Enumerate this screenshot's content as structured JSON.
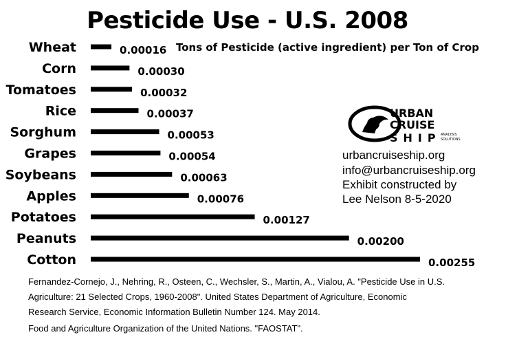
{
  "chart_data": {
    "type": "bar",
    "orientation": "horizontal",
    "title": "Pesticide Use - U.S. 2008",
    "unit_note": "Tons of Pesticide (active ingredient) per Ton of Crop",
    "categories": [
      "Wheat",
      "Corn",
      "Tomatoes",
      "Rice",
      "Sorghum",
      "Grapes",
      "Soybeans",
      "Apples",
      "Potatoes",
      "Peanuts",
      "Cotton"
    ],
    "values": [
      0.00016,
      0.0003,
      0.00032,
      0.00037,
      0.00053,
      0.00054,
      0.00063,
      0.00076,
      0.00127,
      0.002,
      0.00255
    ],
    "value_labels": [
      "0.00016",
      "0.00030",
      "0.00032",
      "0.00037",
      "0.00053",
      "0.00054",
      "0.00063",
      "0.00076",
      "0.00127",
      "0.00200",
      "0.00255"
    ],
    "xlim": [
      0,
      0.00255
    ],
    "grid": false,
    "legend": "none",
    "bar_color": "#000000"
  },
  "logo": {
    "lines": [
      "URBAN",
      "CRUISE",
      "SHIP"
    ],
    "sub": [
      "ANALYSIS",
      "SOLUTIONS"
    ]
  },
  "credits": [
    "urbancruiseship.org",
    "info@urbancruiseship.org",
    "Exhibit constructed by",
    "Lee Nelson 8-5-2020"
  ],
  "citations": [
    "Fernandez-Cornejo, J., Nehring, R., Osteen, C., Wechsler, S., Martin, A., Vialou, A. \"Pesticide Use in U.S.",
    "Agriculture: 21 Selected Crops, 1960-2008\". United States Department of Agriculture, Economic",
    "Research Service, Economic Information Bulletin Number 124. May 2014.",
    "Food and Agriculture Organization of the United Nations. \"FAOSTAT\"."
  ]
}
